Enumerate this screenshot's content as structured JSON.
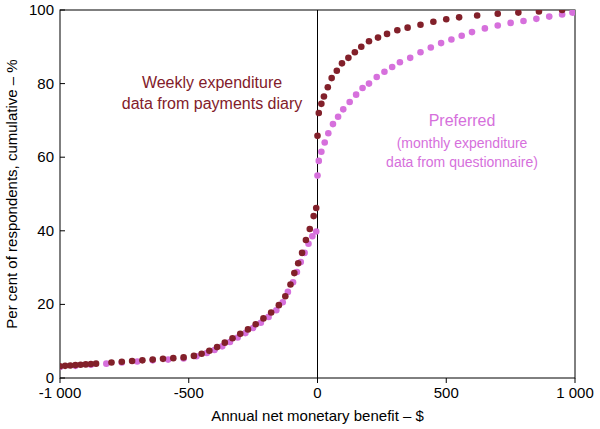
{
  "chart_data": {
    "type": "scatter",
    "x_label": "Annual net monetary benefit – $",
    "y_label": "Per cent of respondents, cumulative – %",
    "xlim": [
      -1000,
      1000
    ],
    "ylim": [
      0,
      100
    ],
    "xticks": [
      {
        "value": -1000,
        "label": "-1 000"
      },
      -500,
      0,
      500,
      {
        "value": 1000,
        "label": "1 000"
      }
    ],
    "yticks": [
      0,
      20,
      40,
      60,
      80,
      100
    ],
    "grid": false,
    "marker": "circle",
    "annotations": [
      "(monthly expenditure data from questionnaire)"
    ],
    "series": [
      {
        "name": "Weekly expenditure data from payments diary",
        "color": "#82202a",
        "x": [
          -1000,
          -980,
          -960,
          -940,
          -920,
          -900,
          -880,
          -860,
          -800,
          -760,
          -720,
          -680,
          -640,
          -600,
          -560,
          -520,
          -480,
          -450,
          -420,
          -390,
          -360,
          -330,
          -300,
          -270,
          -240,
          -210,
          -180,
          -150,
          -125,
          -105,
          -90,
          -75,
          -60,
          -45,
          -30,
          -15,
          -5,
          0,
          5,
          15,
          25,
          40,
          55,
          75,
          95,
          120,
          145,
          170,
          200,
          235,
          270,
          310,
          350,
          400,
          450,
          500,
          550,
          620,
          700,
          780,
          860,
          950
        ],
        "values": [
          3.2,
          3.3,
          3.4,
          3.5,
          3.6,
          3.7,
          3.8,
          3.9,
          4.2,
          4.4,
          4.6,
          4.8,
          5.0,
          5.2,
          5.4,
          5.6,
          6.0,
          6.6,
          7.4,
          8.4,
          9.6,
          10.8,
          12.0,
          13.2,
          14.6,
          16.2,
          17.8,
          19.8,
          22.2,
          25.4,
          28.5,
          31.2,
          34.0,
          37.5,
          40.5,
          44.0,
          46.2,
          65.8,
          72.0,
          74.5,
          76.5,
          79.0,
          81.5,
          83.5,
          85.5,
          87.0,
          88.5,
          90.0,
          91.5,
          92.5,
          93.5,
          94.5,
          95.2,
          96.0,
          96.8,
          97.5,
          98.0,
          98.5,
          99.0,
          99.3,
          99.6,
          100.0
        ]
      },
      {
        "name": "Preferred",
        "color": "#d670dc",
        "x": [
          -1000,
          -940,
          -880,
          -820,
          -760,
          -700,
          -640,
          -580,
          -520,
          -470,
          -430,
          -400,
          -370,
          -340,
          -310,
          -280,
          -250,
          -220,
          -190,
          -160,
          -135,
          -115,
          -95,
          -80,
          -65,
          -50,
          -35,
          -20,
          -5,
          0,
          5,
          15,
          28,
          42,
          60,
          80,
          100,
          125,
          150,
          175,
          200,
          230,
          260,
          290,
          320,
          360,
          400,
          440,
          480,
          520,
          560,
          600,
          650,
          700,
          750,
          800,
          850,
          900,
          950,
          990
        ],
        "values": [
          3.0,
          3.3,
          3.6,
          3.9,
          4.2,
          4.5,
          4.8,
          5.0,
          5.3,
          5.9,
          6.8,
          7.6,
          8.6,
          9.8,
          11.0,
          12.2,
          13.6,
          15.0,
          16.6,
          18.4,
          20.6,
          23.4,
          26.0,
          28.8,
          31.5,
          34.0,
          36.5,
          38.5,
          39.8,
          55.0,
          59.0,
          61.5,
          64.0,
          66.5,
          69.0,
          71.0,
          73.0,
          75.0,
          77.0,
          78.8,
          80.0,
          81.8,
          83.2,
          84.5,
          85.8,
          87.0,
          88.5,
          89.8,
          91.0,
          92.0,
          93.0,
          94.0,
          95.0,
          95.8,
          96.5,
          97.0,
          97.6,
          98.2,
          98.8,
          99.3
        ]
      }
    ]
  }
}
